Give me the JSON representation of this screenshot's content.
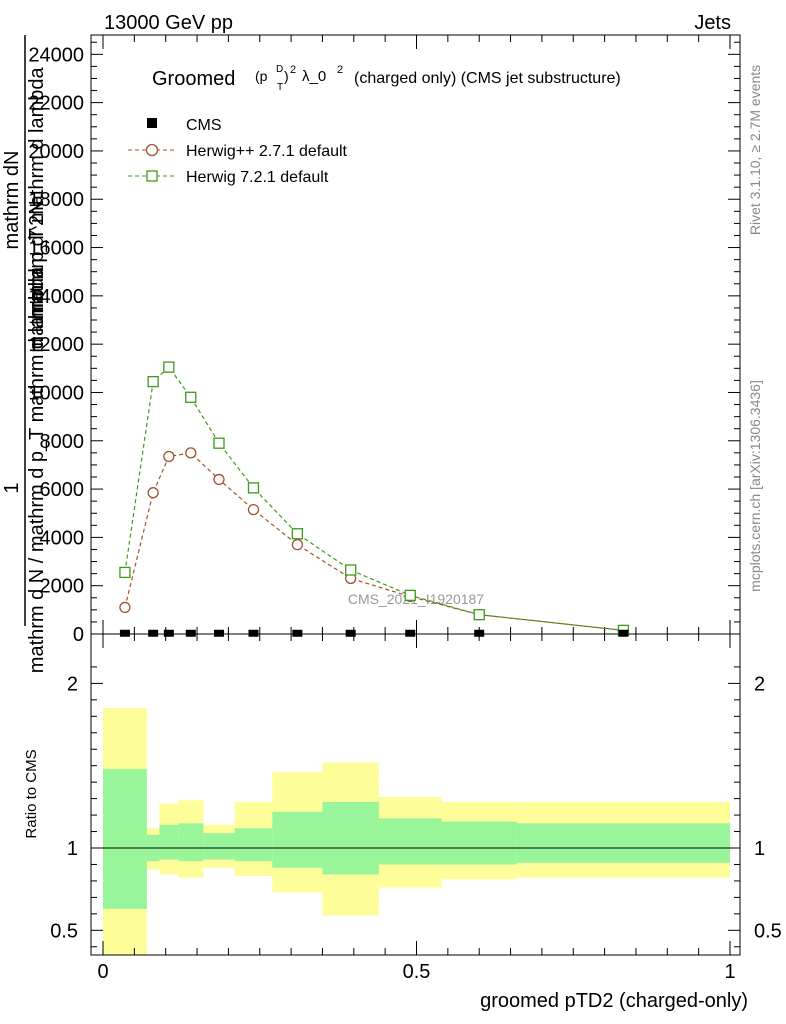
{
  "header": {
    "left": "13000 GeV pp",
    "right": "Jets"
  },
  "plot_title": {
    "prefix": "Groomed",
    "p": "(p",
    "p_sup": "D",
    "p_sub": "T",
    "close": ")",
    "exp1": "2",
    "lambda": "λ_0",
    "exp2": "2",
    "suffix": "(charged only) (CMS jet substructure)"
  },
  "ylabel_main": {
    "top": "mathrm d^2N",
    "num": "1",
    "lines": [
      "mathrm d N / mathrm d p_T mathrm d lambda",
      "mathrm d p_T mathrm d lambda"
    ],
    "numerator": "mathrm dN"
  },
  "ylabel_ratio": "Ratio to CMS",
  "xlabel": "groomed pTD2 (charged-only)",
  "watermark": "CMS_2021_I1920187",
  "side_texts": {
    "rivet": "Rivet 3.1.10, ≥ 2.7M events",
    "mcplots": "mcplots.cern.ch [arXiv:1306.3436]"
  },
  "colors": {
    "cms": "#000000",
    "herwig271": "#a0522d",
    "herwig721": "#3c9a1c",
    "band_inner": "#99f599",
    "band_outer": "#fdfd99"
  },
  "chart_data": [
    {
      "type": "line",
      "title": "Groomed (p_T^D)^2 λ_0^2 (charged only) (CMS jet substructure)",
      "xlim": [
        0,
        1
      ],
      "ylim": [
        0,
        24800
      ],
      "x_ticks": [
        "0",
        "0.5",
        "1"
      ],
      "y_ticks": [
        "0",
        "2000",
        "4000",
        "6000",
        "8000",
        "10000",
        "12000",
        "14000",
        "16000",
        "18000",
        "20000",
        "22000",
        "24000"
      ],
      "legend_position": "top-left",
      "series": [
        {
          "name": "CMS",
          "marker": "filled-square",
          "x": [
            0.035,
            0.08,
            0.105,
            0.14,
            0.185,
            0.24,
            0.31,
            0.395,
            0.49,
            0.6,
            0.83
          ],
          "y": [
            10,
            10,
            10,
            10,
            10,
            10,
            10,
            10,
            10,
            10,
            10
          ]
        },
        {
          "name": "Herwig++ 2.7.1 default",
          "marker": "open-circle",
          "x": [
            0.035,
            0.08,
            0.105,
            0.14,
            0.185,
            0.24,
            0.31,
            0.395,
            0.49,
            0.6,
            0.83
          ],
          "y": [
            1100,
            5850,
            7350,
            7500,
            6400,
            5150,
            3700,
            2300,
            1550,
            800,
            150
          ]
        },
        {
          "name": "Herwig 7.2.1 default",
          "marker": "open-square",
          "x": [
            0.035,
            0.08,
            0.105,
            0.14,
            0.185,
            0.24,
            0.31,
            0.395,
            0.49,
            0.6,
            0.83
          ],
          "y": [
            2550,
            10450,
            11050,
            9800,
            7900,
            6050,
            4150,
            2650,
            1600,
            800,
            150
          ]
        }
      ]
    },
    {
      "type": "area",
      "title": "Ratio to CMS",
      "ylabel": "Ratio to CMS",
      "xlabel": "groomed pTD2 (charged-only)",
      "xlim": [
        0,
        1
      ],
      "ylim": [
        0.35,
        2.3
      ],
      "y_ticks": [
        "0.5",
        "1",
        "2"
      ],
      "x_ticks": [
        "0",
        "0.5",
        "1"
      ],
      "bin_edges": [
        0.0,
        0.07,
        0.09,
        0.12,
        0.16,
        0.21,
        0.27,
        0.35,
        0.44,
        0.54,
        0.66,
        1.0
      ],
      "inner_band": {
        "low": [
          0.63,
          0.92,
          0.93,
          0.92,
          0.93,
          0.92,
          0.88,
          0.84,
          0.9,
          0.9,
          0.91
        ],
        "high": [
          1.48,
          1.08,
          1.14,
          1.15,
          1.09,
          1.12,
          1.22,
          1.28,
          1.18,
          1.16,
          1.15
        ]
      },
      "outer_band": {
        "low": [
          0.35,
          0.87,
          0.84,
          0.82,
          0.88,
          0.83,
          0.73,
          0.59,
          0.76,
          0.81,
          0.82
        ],
        "high": [
          1.85,
          1.12,
          1.27,
          1.29,
          1.14,
          1.28,
          1.46,
          1.52,
          1.31,
          1.28,
          1.28
        ]
      },
      "reference_line": 1
    }
  ]
}
